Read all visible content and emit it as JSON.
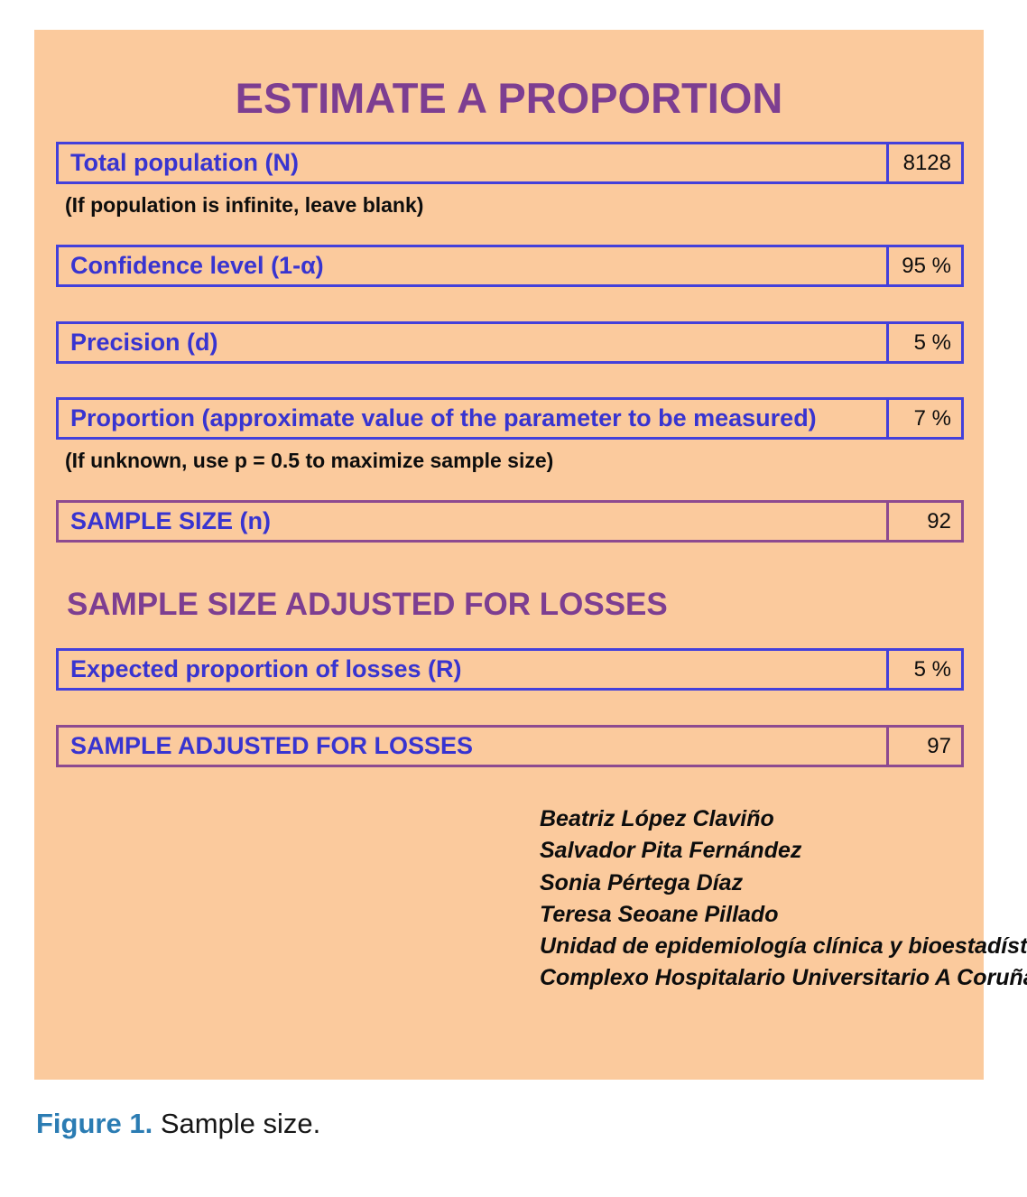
{
  "form": {
    "title": "ESTIMATE A PROPORTION",
    "rows": [
      {
        "label": "Total population (N)",
        "value": "8128"
      },
      {
        "label": "Confidence level (1-α)",
        "value": "95 %"
      },
      {
        "label": "Precision (d)",
        "value": "5 %"
      },
      {
        "label": "Proportion (approximate value of the parameter to be measured)",
        "value": "7 %"
      },
      {
        "label": "SAMPLE SIZE (n)",
        "value": "92"
      }
    ],
    "hints": {
      "population": "(If population is infinite, leave blank)",
      "proportion": "(If unknown, use p = 0.5 to maximize sample size)"
    },
    "losses_section": {
      "heading": "SAMPLE SIZE ADJUSTED FOR LOSSES",
      "rows": [
        {
          "label": "Expected proportion of losses (R)",
          "value": "5 %"
        },
        {
          "label": "SAMPLE ADJUSTED FOR LOSSES",
          "value": "97"
        }
      ]
    }
  },
  "credits": {
    "lines": [
      "Beatriz López Claviño",
      "Salvador Pita Fernández",
      "Sonia Pértega Díaz",
      "Teresa Seoane Pillado",
      "Unidad de epidemiología clínica y bioestadística",
      "Complexo Hospitalario Universitario A Coruña"
    ]
  },
  "caption": {
    "label": "Figure 1.",
    "text": " Sample size."
  },
  "colors": {
    "panel_background": "#fbca9d",
    "title_purple": "#7d3e91",
    "field_blue": "#3834d0",
    "blue_border": "#4340db",
    "purple_border": "#8d4a90",
    "caption_blue": "#2b7cb3"
  }
}
